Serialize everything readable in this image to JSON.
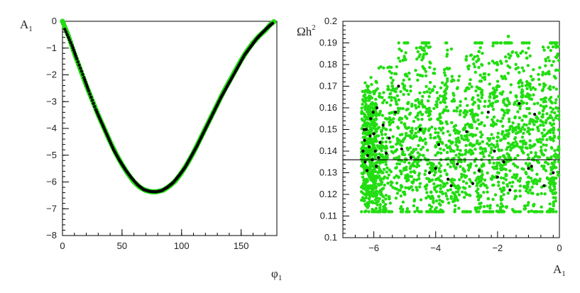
{
  "colors": {
    "green": "#22dd11",
    "black": "#000000"
  },
  "chart_data": [
    {
      "type": "scatter",
      "name": "left",
      "xlabel": "φ",
      "xlabel_sub": "1",
      "ylabel": "A",
      "ylabel_sub": "1",
      "xlim": [
        0,
        180
      ],
      "ylim": [
        -8,
        0
      ],
      "xticks": [
        0,
        50,
        100,
        150
      ],
      "yticks": [
        0,
        -1,
        -2,
        -3,
        -4,
        -5,
        -6,
        -7,
        -8
      ],
      "xtick_labels": [
        "0",
        "50",
        "100",
        "150"
      ],
      "ytick_labels": [
        "0",
        "−1",
        "−2",
        "−3",
        "−4",
        "−5",
        "−6",
        "−7",
        "−8"
      ],
      "series": [
        {
          "color": "green",
          "points": [
            [
              0,
              0
            ],
            [
              5,
              -0.55
            ],
            [
              10,
              -1.2
            ],
            [
              15,
              -1.8
            ],
            [
              20,
              -2.4
            ],
            [
              25,
              -2.95
            ],
            [
              30,
              -3.5
            ],
            [
              35,
              -4.0
            ],
            [
              40,
              -4.5
            ],
            [
              45,
              -4.95
            ],
            [
              50,
              -5.35
            ],
            [
              55,
              -5.7
            ],
            [
              60,
              -6.0
            ],
            [
              65,
              -6.2
            ],
            [
              70,
              -6.32
            ],
            [
              75,
              -6.37
            ],
            [
              80,
              -6.36
            ],
            [
              85,
              -6.3
            ],
            [
              90,
              -6.15
            ],
            [
              95,
              -5.95
            ],
            [
              100,
              -5.65
            ],
            [
              105,
              -5.3
            ],
            [
              110,
              -4.9
            ],
            [
              115,
              -4.45
            ],
            [
              120,
              -4.0
            ],
            [
              125,
              -3.55
            ],
            [
              130,
              -3.1
            ],
            [
              135,
              -2.65
            ],
            [
              140,
              -2.25
            ],
            [
              145,
              -1.85
            ],
            [
              150,
              -1.45
            ],
            [
              155,
              -1.1
            ],
            [
              160,
              -0.8
            ],
            [
              165,
              -0.55
            ],
            [
              170,
              -0.35
            ],
            [
              175,
              -0.1
            ],
            [
              178,
              0
            ]
          ]
        },
        {
          "color": "black",
          "points": [
            [
              2,
              -0.3
            ],
            [
              8,
              -0.9
            ],
            [
              12,
              -1.4
            ],
            [
              18,
              -2.1
            ],
            [
              22,
              -2.6
            ],
            [
              28,
              -3.3
            ],
            [
              33,
              -3.8
            ],
            [
              38,
              -4.3
            ],
            [
              43,
              -4.8
            ],
            [
              48,
              -5.2
            ],
            [
              53,
              -5.55
            ],
            [
              58,
              -5.85
            ],
            [
              63,
              -6.1
            ],
            [
              68,
              -6.28
            ],
            [
              73,
              -6.35
            ],
            [
              78,
              -6.37
            ],
            [
              83,
              -6.33
            ],
            [
              88,
              -6.2
            ],
            [
              93,
              -6.02
            ],
            [
              98,
              -5.75
            ],
            [
              103,
              -5.45
            ],
            [
              108,
              -5.05
            ],
            [
              113,
              -4.65
            ],
            [
              118,
              -4.2
            ],
            [
              123,
              -3.75
            ],
            [
              128,
              -3.3
            ],
            [
              133,
              -2.85
            ],
            [
              138,
              -2.45
            ],
            [
              143,
              -2.05
            ],
            [
              148,
              -1.65
            ],
            [
              153,
              -1.25
            ],
            [
              158,
              -0.95
            ],
            [
              163,
              -0.65
            ],
            [
              168,
              -0.42
            ],
            [
              173,
              -0.2
            ],
            [
              177,
              -0.05
            ]
          ]
        }
      ]
    },
    {
      "type": "scatter",
      "name": "right",
      "xlabel": "A",
      "xlabel_sub": "1",
      "ylabel": "Ωh",
      "ylabel_sup": "2",
      "xlim": [
        -7,
        0
      ],
      "ylim": [
        0.1,
        0.2
      ],
      "xticks": [
        -6,
        -4,
        -2,
        0
      ],
      "yticks": [
        0.1,
        0.11,
        0.12,
        0.13,
        0.14,
        0.15,
        0.16,
        0.17,
        0.18,
        0.19,
        0.2
      ],
      "xtick_labels": [
        "−6",
        "−4",
        "−2",
        "0"
      ],
      "ytick_labels": [
        "0.1",
        "0.11",
        "0.12",
        "0.13",
        "0.14",
        "0.15",
        "0.16",
        "0.17",
        "0.18",
        "0.19",
        "0.2"
      ],
      "hline": 0.136,
      "series": [
        {
          "color": "green",
          "points": [
            [
              -6.3,
              0.125
            ],
            [
              -6.2,
              0.16
            ],
            [
              -6.1,
              0.13
            ],
            [
              -6.0,
              0.145
            ],
            [
              -5.9,
              0.12
            ],
            [
              -5.8,
              0.165
            ],
            [
              -5.7,
              0.135
            ],
            [
              -5.6,
              0.15
            ],
            [
              -5.5,
              0.118
            ],
            [
              -5.4,
              0.17
            ],
            [
              -5.3,
              0.14
            ],
            [
              -5.2,
              0.128
            ],
            [
              -5.1,
              0.155
            ],
            [
              -5.0,
              0.12
            ],
            [
              -4.9,
              0.162
            ],
            [
              -4.8,
              0.133
            ],
            [
              -4.7,
              0.147
            ],
            [
              -4.6,
              0.122
            ],
            [
              -4.5,
              0.175
            ],
            [
              -4.4,
              0.138
            ],
            [
              -4.3,
              0.158
            ],
            [
              -4.2,
              0.126
            ],
            [
              -4.1,
              0.168
            ],
            [
              -4.0,
              0.142
            ],
            [
              -3.9,
              0.119
            ],
            [
              -3.8,
              0.153
            ],
            [
              -3.7,
              0.131
            ],
            [
              -3.6,
              0.178
            ],
            [
              -3.5,
              0.144
            ],
            [
              -3.4,
              0.124
            ],
            [
              -3.3,
              0.16
            ],
            [
              -3.2,
              0.136
            ],
            [
              -3.1,
              0.15
            ],
            [
              -3.0,
              0.12
            ],
            [
              -2.9,
              0.171
            ],
            [
              -2.8,
              0.139
            ],
            [
              -2.7,
              0.157
            ],
            [
              -2.6,
              0.127
            ],
            [
              -2.5,
              0.166
            ],
            [
              -2.4,
              0.141
            ],
            [
              -2.3,
              0.118
            ],
            [
              -2.2,
              0.152
            ],
            [
              -2.1,
              0.132
            ],
            [
              -2.0,
              0.18
            ],
            [
              -1.9,
              0.145
            ],
            [
              -1.8,
              0.123
            ],
            [
              -1.7,
              0.161
            ],
            [
              -1.6,
              0.137
            ],
            [
              -1.5,
              0.149
            ],
            [
              -1.4,
              0.119
            ],
            [
              -1.3,
              0.172
            ],
            [
              -1.2,
              0.14
            ],
            [
              -1.1,
              0.156
            ],
            [
              -1.0,
              0.128
            ],
            [
              -0.9,
              0.164
            ],
            [
              -0.8,
              0.143
            ],
            [
              -0.7,
              0.12
            ],
            [
              -0.6,
              0.154
            ],
            [
              -0.5,
              0.133
            ],
            [
              -0.4,
              0.176
            ],
            [
              -0.3,
              0.146
            ],
            [
              -0.2,
              0.125
            ],
            [
              -0.1,
              0.16
            ],
            [
              -0.05,
              0.138
            ],
            [
              -6.25,
              0.148
            ],
            [
              -6.15,
              0.118
            ],
            [
              -6.05,
              0.158
            ],
            [
              -5.95,
              0.133
            ],
            [
              -5.85,
              0.142
            ],
            [
              -5.65,
              0.128
            ],
            [
              -5.35,
              0.158
            ],
            [
              -4.95,
              0.136
            ],
            [
              -4.55,
              0.149
            ],
            [
              -4.15,
              0.121
            ],
            [
              -3.75,
              0.163
            ],
            [
              -3.35,
              0.132
            ],
            [
              -2.95,
              0.145
            ],
            [
              -2.55,
              0.124
            ],
            [
              -2.15,
              0.167
            ],
            [
              -1.75,
              0.134
            ],
            [
              -1.35,
              0.151
            ],
            [
              -0.95,
              0.122
            ],
            [
              -0.55,
              0.168
            ],
            [
              -0.15,
              0.135
            ],
            [
              -4.3,
              0.185
            ],
            [
              -2.6,
              0.186
            ],
            [
              -1.05,
              0.183
            ],
            [
              -5.8,
              0.113
            ],
            [
              -3.9,
              0.112
            ],
            [
              -1.9,
              0.114
            ],
            [
              -0.25,
              0.113
            ],
            [
              -1.65,
              0.193
            ],
            [
              -5.05,
              0.182
            ],
            [
              -0.1,
              0.188
            ]
          ]
        },
        {
          "color": "black",
          "points": [
            [
              -6.35,
              0.14
            ],
            [
              -6.3,
              0.145
            ],
            [
              -6.28,
              0.135
            ],
            [
              -6.25,
              0.15
            ],
            [
              -6.2,
              0.138
            ],
            [
              -6.15,
              0.142
            ],
            [
              -6.1,
              0.155
            ],
            [
              -6.05,
              0.136
            ],
            [
              -6.0,
              0.148
            ],
            [
              -5.95,
              0.14
            ],
            [
              -5.9,
              0.16
            ],
            [
              -5.85,
              0.137
            ],
            [
              -5.8,
              0.144
            ],
            [
              -5.7,
              0.152
            ],
            [
              -5.6,
              0.139
            ],
            [
              -5.5,
              0.146
            ],
            [
              -5.3,
              0.158
            ],
            [
              -5.1,
              0.141
            ],
            [
              -4.8,
              0.137
            ],
            [
              -4.5,
              0.15
            ],
            [
              -4.2,
              0.13
            ],
            [
              -3.9,
              0.143
            ],
            [
              -3.6,
              0.127
            ],
            [
              -3.3,
              0.134
            ],
            [
              -3.0,
              0.149
            ],
            [
              -2.8,
              0.125
            ],
            [
              -2.6,
              0.131
            ],
            [
              -2.3,
              0.158
            ],
            [
              -2.0,
              0.128
            ],
            [
              -1.8,
              0.135
            ],
            [
              -1.6,
              0.122
            ],
            [
              -1.3,
              0.162
            ],
            [
              -1.0,
              0.132
            ],
            [
              -0.8,
              0.157
            ],
            [
              -0.5,
              0.124
            ],
            [
              -0.2,
              0.13
            ],
            [
              -5.2,
              0.17
            ],
            [
              -4.0,
              0.132
            ],
            [
              -2.1,
              0.14
            ],
            [
              -3.5,
              0.124
            ],
            [
              -0.9,
              0.133
            ],
            [
              -6.32,
              0.15
            ],
            [
              -6.22,
              0.131
            ],
            [
              -6.12,
              0.147
            ],
            [
              -6.02,
              0.158
            ],
            [
              -5.92,
              0.133
            ]
          ]
        }
      ]
    }
  ]
}
